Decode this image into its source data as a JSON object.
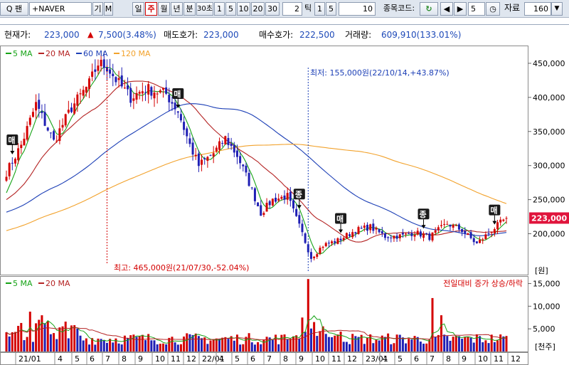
{
  "toolbar": {
    "search_prefix": "Q 팬",
    "stock_name": "+NAVER",
    "btn_ki": "기",
    "btn_m": "M",
    "period_tabs": [
      "일",
      "주",
      "월",
      "년",
      "분",
      "30초"
    ],
    "selected_period": "주",
    "interval_buttons": [
      "1",
      "5",
      "10",
      "20",
      "30"
    ],
    "tick_value": "2",
    "tick_label": "틱",
    "tick_buttons": [
      "1",
      "5",
      "10"
    ],
    "code_label": "종목코드:",
    "refresh_icon": "refresh-icon",
    "prev_icon": "triangle-left-icon",
    "next_icon": "triangle-right-icon",
    "step_value": "5",
    "timer_icon": "clock-icon",
    "data_label": "자료",
    "data_count": "160",
    "dropdown_icon": "chevron-down-icon"
  },
  "info": {
    "current_label": "현재가:",
    "current_value": "223,000",
    "change_arrow": "▲",
    "change_value": "7,500(3.48%)",
    "ask_label": "매도호가:",
    "ask_value": "223,000",
    "bid_label": "매수호가:",
    "bid_value": "222,500",
    "volume_label": "거래량:",
    "volume_value": "609,910(133.01%)"
  },
  "colors": {
    "up": "#d40000",
    "down": "#1f1fb4",
    "ma5": "#16a316",
    "ma20": "#b42323",
    "ma60": "#1c3fb6",
    "ma120": "#f2a22c",
    "price_tag_bg": "#e0143c"
  },
  "price_panel": {
    "legend": [
      {
        "name": "5 MA",
        "color": "#16a316"
      },
      {
        "name": "20 MA",
        "color": "#b42323"
      },
      {
        "name": "60 MA",
        "color": "#1c3fb6"
      },
      {
        "name": "120 MA",
        "color": "#f2a22c"
      }
    ],
    "annotation_low": "최저: 155,000원(22/10/14,+43.87%)",
    "annotation_high": "최고: 465,000원(21/07/30,-52.04%)",
    "current_price_tag": "223,000",
    "markers": [
      {
        "label": "매",
        "week": 2
      },
      {
        "label": "매",
        "week": 58
      },
      {
        "label": "종",
        "week": 99
      },
      {
        "label": "매",
        "week": 113
      },
      {
        "label": "종",
        "week": 141
      },
      {
        "label": "매",
        "week": 165
      }
    ]
  },
  "volume_panel": {
    "legend": [
      {
        "name": "5 MA",
        "color": "#16a316"
      },
      {
        "name": "20 MA",
        "color": "#b42323"
      }
    ],
    "caption": "전일대비 증가 상승/하락",
    "y_unit": "[천주]",
    "yticks": [
      "15,000",
      "10,000",
      "5,000"
    ]
  },
  "price_unit": "[원]",
  "price_yticks": [
    "450,000",
    "400,000",
    "350,000",
    "300,000",
    "250,000",
    "200,000"
  ],
  "x_labels": [
    "21/01",
    "4",
    "5",
    "6",
    "7",
    "8",
    "9",
    "10",
    "11",
    "12",
    "22/01",
    "4",
    "5",
    "6",
    "7",
    "8",
    "9",
    "10",
    "11",
    "12",
    "23/01",
    "4",
    "5",
    "6",
    "7",
    "8",
    "9",
    "10",
    "11",
    "12"
  ],
  "chart_data": {
    "type": "candlestick",
    "title": "",
    "xlabel": "",
    "ylabel": "[원]",
    "ylim": [
      140000,
      475000
    ],
    "price_ticks": [
      200000,
      250000,
      300000,
      350000,
      400000,
      450000
    ],
    "volume_ylim": [
      0,
      16500
    ],
    "volume_ticks": [
      5000,
      10000,
      15000
    ],
    "week_count": 170,
    "key_points": [
      {
        "week": 0,
        "close": 290000
      },
      {
        "week": 5,
        "close": 330000
      },
      {
        "week": 10,
        "close": 390000
      },
      {
        "week": 16,
        "close": 335000
      },
      {
        "week": 22,
        "close": 385000
      },
      {
        "week": 28,
        "close": 420000
      },
      {
        "week": 31,
        "close": 450000
      },
      {
        "week": 34,
        "close": 445000
      },
      {
        "week": 38,
        "close": 420000
      },
      {
        "week": 42,
        "close": 400000
      },
      {
        "week": 47,
        "close": 413000
      },
      {
        "week": 54,
        "close": 405000
      },
      {
        "week": 58,
        "close": 380000
      },
      {
        "week": 62,
        "close": 330000
      },
      {
        "week": 65,
        "close": 300000
      },
      {
        "week": 70,
        "close": 318000
      },
      {
        "week": 74,
        "close": 340000
      },
      {
        "week": 78,
        "close": 315000
      },
      {
        "week": 82,
        "close": 275000
      },
      {
        "week": 86,
        "close": 230000
      },
      {
        "week": 90,
        "close": 250000
      },
      {
        "week": 95,
        "close": 255000
      },
      {
        "week": 100,
        "close": 200000
      },
      {
        "week": 103,
        "close": 165000
      },
      {
        "week": 107,
        "close": 183000
      },
      {
        "week": 112,
        "close": 190000
      },
      {
        "week": 118,
        "close": 205000
      },
      {
        "week": 123,
        "close": 210000
      },
      {
        "week": 128,
        "close": 196000
      },
      {
        "week": 134,
        "close": 197000
      },
      {
        "week": 138,
        "close": 202000
      },
      {
        "week": 143,
        "close": 195000
      },
      {
        "week": 149,
        "close": 215000
      },
      {
        "week": 154,
        "close": 205000
      },
      {
        "week": 159,
        "close": 185000
      },
      {
        "week": 164,
        "close": 205000
      },
      {
        "week": 169,
        "close": 223000
      }
    ],
    "volume_spike": {
      "week": 102,
      "value": 16000
    },
    "volume_highlights": [
      {
        "week": 144,
        "value": 11800
      },
      {
        "week": 147,
        "value": 8000
      }
    ]
  }
}
